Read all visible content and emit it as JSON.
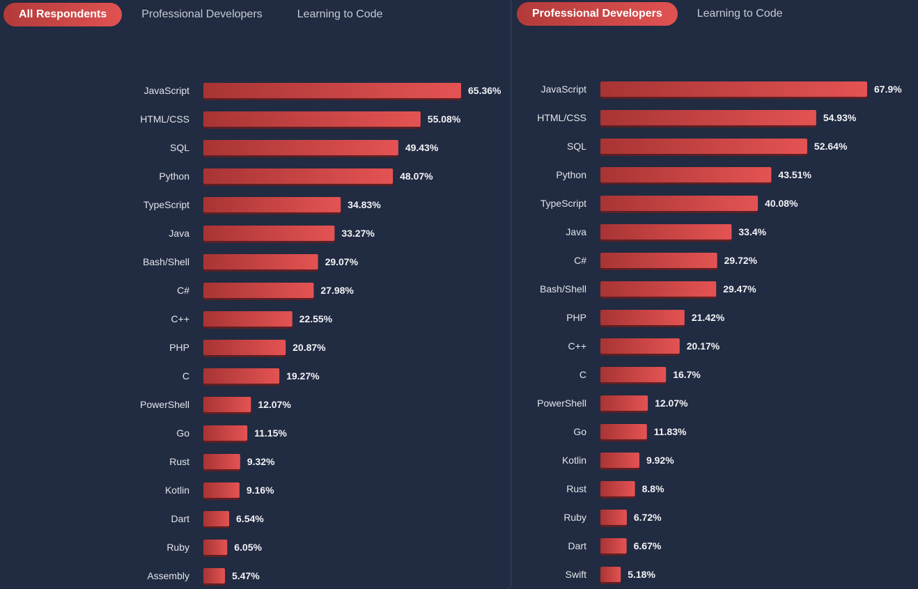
{
  "panels": [
    {
      "tabs": [
        {
          "label": "All Respondents",
          "active": true
        },
        {
          "label": "Professional Developers",
          "active": false
        },
        {
          "label": "Learning to Code",
          "active": false
        }
      ]
    },
    {
      "tabs": [
        {
          "label": "Professional Developers",
          "active": true
        },
        {
          "label": "Learning to Code",
          "active": false
        }
      ]
    }
  ],
  "colors": {
    "bar_start": "#a83434",
    "bar_end": "#e45353",
    "bar_shadow": "#5e1f24"
  },
  "chart_data": [
    {
      "type": "bar",
      "orientation": "horizontal",
      "title": "",
      "xlabel": "",
      "ylabel": "",
      "value_suffix": "%",
      "xlim": [
        0,
        65.36
      ],
      "categories": [
        "JavaScript",
        "HTML/CSS",
        "SQL",
        "Python",
        "TypeScript",
        "Java",
        "Bash/Shell",
        "C#",
        "C++",
        "PHP",
        "C",
        "PowerShell",
        "Go",
        "Rust",
        "Kotlin",
        "Dart",
        "Ruby",
        "Assembly"
      ],
      "values": [
        65.36,
        55.08,
        49.43,
        48.07,
        34.83,
        33.27,
        29.07,
        27.98,
        22.55,
        20.87,
        19.27,
        12.07,
        11.15,
        9.32,
        9.16,
        6.54,
        6.05,
        5.47
      ],
      "labels": [
        "65.36%",
        "55.08%",
        "49.43%",
        "48.07%",
        "34.83%",
        "33.27%",
        "29.07%",
        "27.98%",
        "22.55%",
        "20.87%",
        "19.27%",
        "12.07%",
        "11.15%",
        "9.32%",
        "9.16%",
        "6.54%",
        "6.05%",
        "5.47%"
      ]
    },
    {
      "type": "bar",
      "orientation": "horizontal",
      "title": "",
      "xlabel": "",
      "ylabel": "",
      "value_suffix": "%",
      "xlim": [
        0,
        67.9
      ],
      "categories": [
        "JavaScript",
        "HTML/CSS",
        "SQL",
        "Python",
        "TypeScript",
        "Java",
        "C#",
        "Bash/Shell",
        "PHP",
        "C++",
        "C",
        "PowerShell",
        "Go",
        "Kotlin",
        "Rust",
        "Ruby",
        "Dart",
        "Swift"
      ],
      "values": [
        67.9,
        54.93,
        52.64,
        43.51,
        40.08,
        33.4,
        29.72,
        29.47,
        21.42,
        20.17,
        16.7,
        12.07,
        11.83,
        9.92,
        8.8,
        6.72,
        6.67,
        5.18
      ],
      "labels": [
        "67.9%",
        "54.93%",
        "52.64%",
        "43.51%",
        "40.08%",
        "33.4%",
        "29.72%",
        "29.47%",
        "21.42%",
        "20.17%",
        "16.7%",
        "12.07%",
        "11.83%",
        "9.92%",
        "8.8%",
        "6.72%",
        "6.67%",
        "5.18%"
      ]
    }
  ]
}
